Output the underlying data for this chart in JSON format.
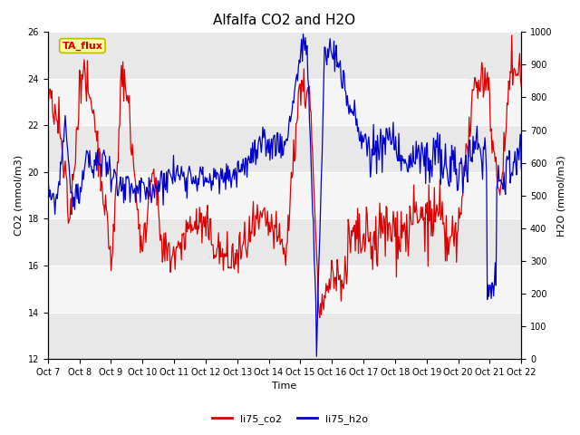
{
  "title": "Alfalfa CO2 and H2O",
  "xlabel": "Time",
  "ylabel_left": "CO2 (mmol/m3)",
  "ylabel_right": "H2O (mmol/m3)",
  "annotation": "TA_flux",
  "x_tick_labels": [
    "Oct 7",
    "Oct 8",
    "Oct 9",
    "Oct 10",
    "Oct 11",
    "Oct 12",
    "Oct 13",
    "Oct 14",
    "Oct 15",
    "Oct 16",
    "Oct 17",
    "Oct 18",
    "Oct 19",
    "Oct 20",
    "Oct 21",
    "Oct 22"
  ],
  "ylim_left": [
    12,
    26
  ],
  "ylim_right": [
    0,
    1000
  ],
  "yticks_left": [
    12,
    14,
    16,
    18,
    20,
    22,
    24,
    26
  ],
  "yticks_right": [
    0,
    100,
    200,
    300,
    400,
    500,
    600,
    700,
    800,
    900,
    1000
  ],
  "legend": [
    {
      "label": "li75_co2",
      "color": "#dd0000"
    },
    {
      "label": "li75_h2o",
      "color": "#0000cc"
    }
  ],
  "fig_bg_color": "#ffffff",
  "band_colors": [
    "#e8e8e8",
    "#f5f5f5"
  ],
  "grid_line_color": "#cccccc",
  "annotation_bg": "#ffff99",
  "annotation_border": "#bbbb00",
  "annotation_text_color": "#cc0000",
  "title_fontsize": 11,
  "axis_label_fontsize": 8,
  "tick_fontsize": 7,
  "legend_fontsize": 8
}
